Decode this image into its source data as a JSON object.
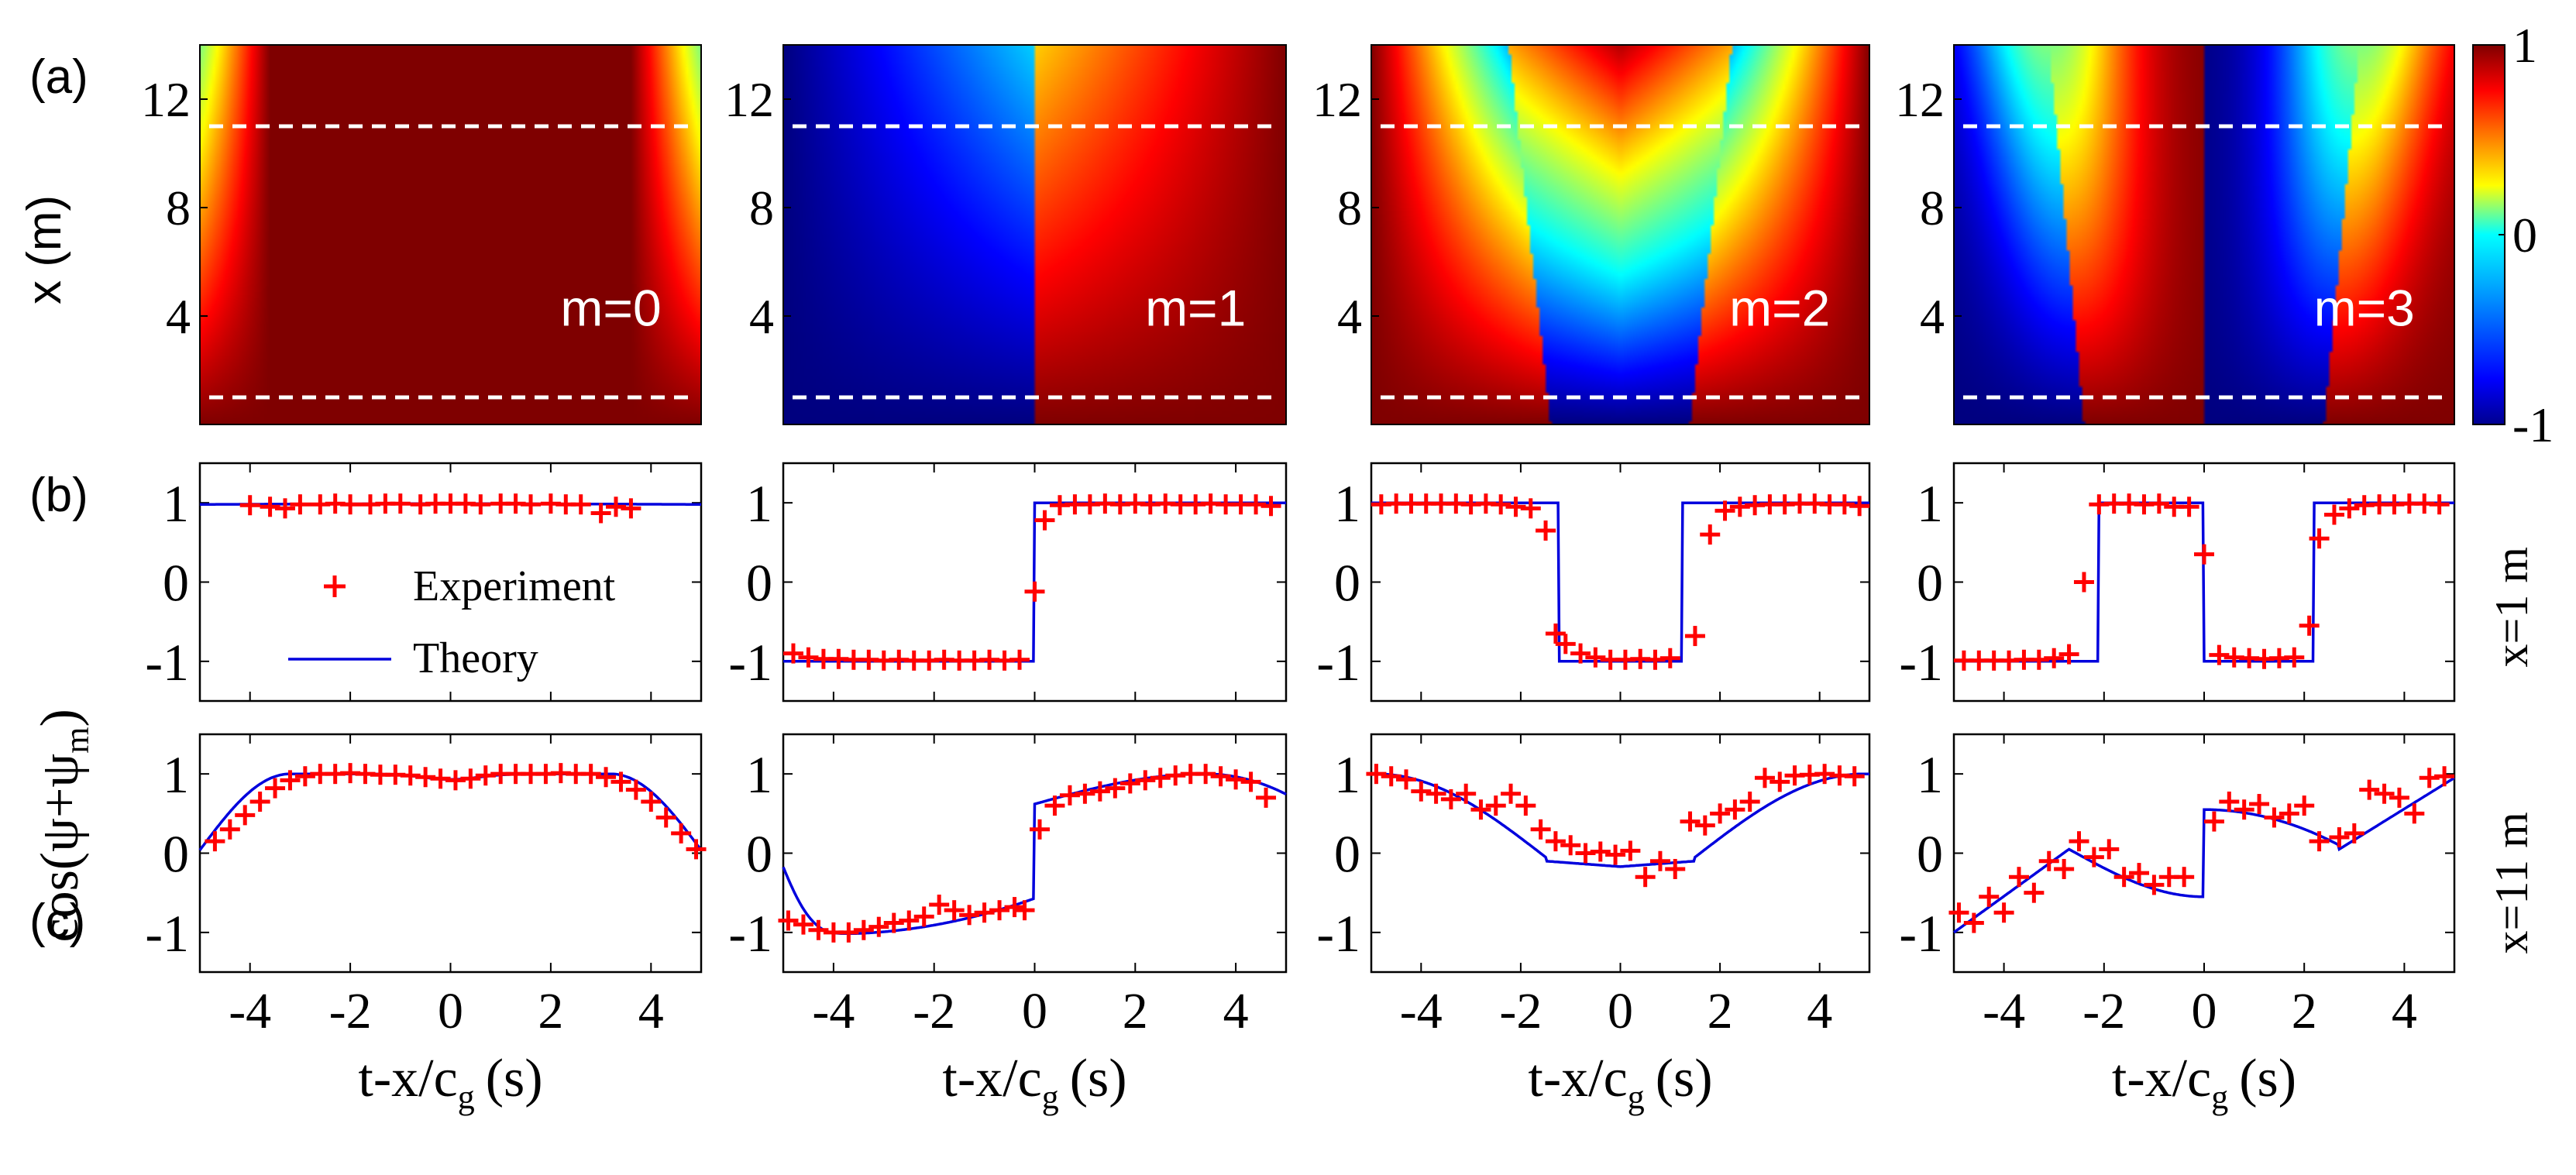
{
  "chart_data": {
    "type": "heatmap",
    "description_panels": {
      "a": {
        "label": "(a)",
        "ylabel": "x (m)",
        "yticks": [
          4,
          8,
          12
        ],
        "ylim": [
          0,
          14
        ],
        "xlim": [
          -5,
          5
        ],
        "dashed_lines_x": [
          1,
          11
        ],
        "colorbar": {
          "ticks": [
            1,
            0,
            -1
          ],
          "tick_labels": [
            "1",
            "0",
            "-1"
          ],
          "range": [
            -1,
            1
          ],
          "colormap": "jet"
        },
        "maps": [
          {
            "mode": "m=0",
            "m": 0
          },
          {
            "mode": "m=1",
            "m": 1
          },
          {
            "mode": "m=2",
            "m": 2
          },
          {
            "mode": "m=3",
            "m": 3
          }
        ]
      },
      "b": {
        "label": "(b)",
        "side_label": "x=1 m",
        "yticks": [
          -1,
          0,
          1
        ],
        "ylim": [
          -1.5,
          1.5
        ],
        "xlim": [
          -5,
          5
        ],
        "legend": {
          "experiment": "Experiment",
          "theory": "Theory",
          "position": "center-left"
        },
        "series_experiment": [
          {
            "m": 0,
            "x": [
              -4,
              -3.6,
              -3.3,
              -3,
              -2.6,
              -2.3,
              -2,
              -1.6,
              -1.3,
              -1,
              -0.6,
              -0.3,
              0,
              0.3,
              0.6,
              1,
              1.3,
              1.6,
              2,
              2.3,
              2.6,
              3,
              3.3,
              3.6
            ],
            "y": [
              0.97,
              0.95,
              0.93,
              0.98,
              0.98,
              0.99,
              0.98,
              0.98,
              0.99,
              0.99,
              0.98,
              0.99,
              0.99,
              0.99,
              0.98,
              0.99,
              0.99,
              0.98,
              0.99,
              0.98,
              0.98,
              0.87,
              0.95,
              0.93
            ]
          },
          {
            "m": 1,
            "x": [
              -4.8,
              -4.5,
              -4.2,
              -3.9,
              -3.6,
              -3.3,
              -3,
              -2.7,
              -2.4,
              -2.1,
              -1.8,
              -1.5,
              -1.2,
              -0.9,
              -0.6,
              -0.3,
              0,
              0.2,
              0.5,
              0.8,
              1.1,
              1.4,
              1.7,
              2,
              2.3,
              2.6,
              2.9,
              3.2,
              3.5,
              3.8,
              4.1,
              4.4,
              4.7
            ],
            "y": [
              -0.9,
              -0.95,
              -0.97,
              -0.97,
              -0.98,
              -0.98,
              -0.99,
              -0.98,
              -0.99,
              -0.99,
              -0.98,
              -0.99,
              -0.99,
              -0.98,
              -0.99,
              -0.98,
              -0.12,
              0.78,
              0.97,
              0.98,
              0.98,
              0.99,
              0.98,
              0.99,
              0.98,
              0.99,
              0.98,
              0.98,
              0.99,
              0.98,
              0.98,
              0.98,
              0.96
            ]
          },
          {
            "m": 2,
            "x": [
              -4.8,
              -4.5,
              -4.2,
              -3.9,
              -3.6,
              -3.3,
              -3,
              -2.7,
              -2.4,
              -2.1,
              -1.8,
              -1.5,
              -1.3,
              -1.1,
              -0.8,
              -0.5,
              -0.2,
              0.1,
              0.4,
              0.7,
              1.0,
              1.5,
              1.8,
              2.1,
              2.4,
              2.7,
              3,
              3.3,
              3.6,
              3.9,
              4.2,
              4.5,
              4.8
            ],
            "y": [
              0.98,
              0.99,
              0.99,
              0.99,
              0.99,
              0.99,
              0.98,
              0.99,
              0.98,
              0.95,
              0.93,
              0.65,
              -0.65,
              -0.78,
              -0.9,
              -0.95,
              -0.98,
              -0.98,
              -0.97,
              -0.98,
              -0.96,
              -0.68,
              0.6,
              0.9,
              0.95,
              0.97,
              0.98,
              0.98,
              0.99,
              0.99,
              0.98,
              0.98,
              0.96
            ]
          },
          {
            "m": 3,
            "x": [
              -4.8,
              -4.5,
              -4.2,
              -3.9,
              -3.6,
              -3.3,
              -3,
              -2.7,
              -2.4,
              -2.1,
              -1.8,
              -1.5,
              -1.2,
              -0.9,
              -0.6,
              -0.3,
              0,
              0.3,
              0.6,
              0.9,
              1.2,
              1.5,
              1.8,
              2.1,
              2.3,
              2.6,
              2.9,
              3.2,
              3.5,
              3.8,
              4.1,
              4.4,
              4.7
            ],
            "y": [
              -0.99,
              -0.99,
              -0.99,
              -0.99,
              -0.98,
              -0.98,
              -0.96,
              -0.91,
              0.0,
              0.98,
              0.99,
              0.99,
              0.98,
              0.99,
              0.95,
              0.95,
              0.35,
              -0.92,
              -0.95,
              -0.96,
              -0.97,
              -0.96,
              -0.95,
              -0.55,
              0.55,
              0.85,
              0.93,
              0.97,
              0.98,
              0.98,
              0.99,
              0.99,
              0.98
            ]
          }
        ]
      },
      "c": {
        "label": "(c)",
        "side_label": "x=11 m",
        "yticks": [
          -1,
          0,
          1
        ],
        "ylim": [
          -1.5,
          1.5
        ],
        "xlim": [
          -5,
          5
        ],
        "xlabel": "t-x/c",
        "xlabel_sub": "g",
        "xlabel_unit": "(s)",
        "xticks": [
          -4,
          -2,
          0,
          2,
          4
        ],
        "series_experiment": [
          {
            "m": 0,
            "x": [
              -4.7,
              -4.4,
              -4.1,
              -3.8,
              -3.5,
              -3.2,
              -2.9,
              -2.6,
              -2.3,
              -2,
              -1.7,
              -1.4,
              -1.1,
              -0.8,
              -0.5,
              -0.2,
              0.1,
              0.4,
              0.7,
              1,
              1.3,
              1.6,
              1.9,
              2.2,
              2.5,
              2.8,
              3.1,
              3.4,
              3.7,
              4,
              4.3,
              4.6,
              4.9
            ],
            "y": [
              0.15,
              0.3,
              0.48,
              0.65,
              0.82,
              0.92,
              0.97,
              1.0,
              1.0,
              1.01,
              1.0,
              0.99,
              0.99,
              0.98,
              0.96,
              0.94,
              0.92,
              0.94,
              0.98,
              1.0,
              1.0,
              1.0,
              1.0,
              1.01,
              1.0,
              1.0,
              0.96,
              0.9,
              0.8,
              0.65,
              0.45,
              0.25,
              0.05
            ]
          },
          {
            "m": 1,
            "x": [
              -4.9,
              -4.6,
              -4.3,
              -4,
              -3.7,
              -3.4,
              -3.1,
              -2.8,
              -2.5,
              -2.2,
              -1.9,
              -1.6,
              -1.3,
              -1,
              -0.7,
              -0.4,
              -0.2,
              0.1,
              0.4,
              0.7,
              1.0,
              1.3,
              1.6,
              1.9,
              2.2,
              2.5,
              2.8,
              3.1,
              3.4,
              3.7,
              4.0,
              4.3,
              4.6
            ],
            "y": [
              -0.85,
              -0.9,
              -0.97,
              -1.0,
              -1.0,
              -0.97,
              -0.93,
              -0.88,
              -0.85,
              -0.8,
              -0.65,
              -0.72,
              -0.78,
              -0.75,
              -0.72,
              -0.68,
              -0.72,
              0.3,
              0.6,
              0.73,
              0.75,
              0.78,
              0.82,
              0.88,
              0.92,
              0.95,
              0.98,
              1.0,
              1.0,
              0.97,
              0.93,
              0.9,
              0.7
            ]
          },
          {
            "m": 2,
            "x": [
              -4.9,
              -4.6,
              -4.3,
              -4,
              -3.7,
              -3.4,
              -3.1,
              -2.8,
              -2.5,
              -2.2,
              -1.9,
              -1.6,
              -1.3,
              -1,
              -0.7,
              -0.4,
              -0.1,
              0.2,
              0.5,
              0.8,
              1.1,
              1.4,
              1.7,
              2.0,
              2.3,
              2.6,
              2.9,
              3.2,
              3.5,
              3.8,
              4.1,
              4.4,
              4.7
            ],
            "y": [
              1.0,
              0.97,
              0.93,
              0.78,
              0.75,
              0.68,
              0.75,
              0.55,
              0.6,
              0.75,
              0.6,
              0.3,
              0.15,
              0.1,
              0.0,
              0.02,
              -0.02,
              0.03,
              -0.3,
              -0.1,
              -0.2,
              0.4,
              0.35,
              0.5,
              0.55,
              0.65,
              0.95,
              0.9,
              0.98,
              0.99,
              1.0,
              0.98,
              0.97
            ]
          },
          {
            "m": 3,
            "x": [
              -4.9,
              -4.6,
              -4.3,
              -4,
              -3.7,
              -3.4,
              -3.1,
              -2.8,
              -2.5,
              -2.2,
              -1.9,
              -1.6,
              -1.3,
              -1,
              -0.7,
              -0.4,
              0.2,
              0.5,
              0.8,
              1.1,
              1.4,
              1.7,
              2,
              2.3,
              2.7,
              3.0,
              3.3,
              3.6,
              3.9,
              4.2,
              4.5,
              4.8
            ],
            "y": [
              -0.75,
              -0.88,
              -0.55,
              -0.75,
              -0.3,
              -0.5,
              -0.1,
              -0.2,
              0.15,
              -0.05,
              0.05,
              -0.3,
              -0.25,
              -0.4,
              -0.3,
              -0.3,
              0.4,
              0.65,
              0.55,
              0.62,
              0.45,
              0.5,
              0.6,
              0.15,
              0.2,
              0.25,
              0.8,
              0.75,
              0.7,
              0.5,
              0.95,
              0.97
            ]
          }
        ]
      }
    },
    "ylabel": "cos(ψ+ψ",
    "ylabel_sub": "m",
    "ylabel_close": ")",
    "colors": {
      "experiment": "#ff0000",
      "theory": "#0000dd",
      "axes": "#000000",
      "dashed": "#ffffff"
    }
  }
}
